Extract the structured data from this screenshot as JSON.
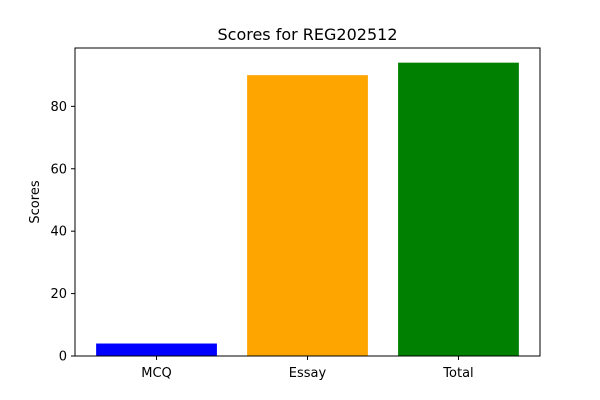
{
  "chart_data": {
    "type": "bar",
    "title": "Scores for REG202512",
    "xlabel": "",
    "ylabel": "Scores",
    "categories": [
      "MCQ",
      "Essay",
      "Total"
    ],
    "values": [
      4,
      90,
      94
    ],
    "colors": [
      "#0000ff",
      "#ffa500",
      "#008000"
    ],
    "ylim": [
      0,
      98.7
    ],
    "yticks": [
      0,
      20,
      40,
      60,
      80
    ],
    "ytick_labels": [
      "0",
      "20",
      "40",
      "60",
      "80"
    ],
    "grid": false,
    "legend": "none"
  }
}
